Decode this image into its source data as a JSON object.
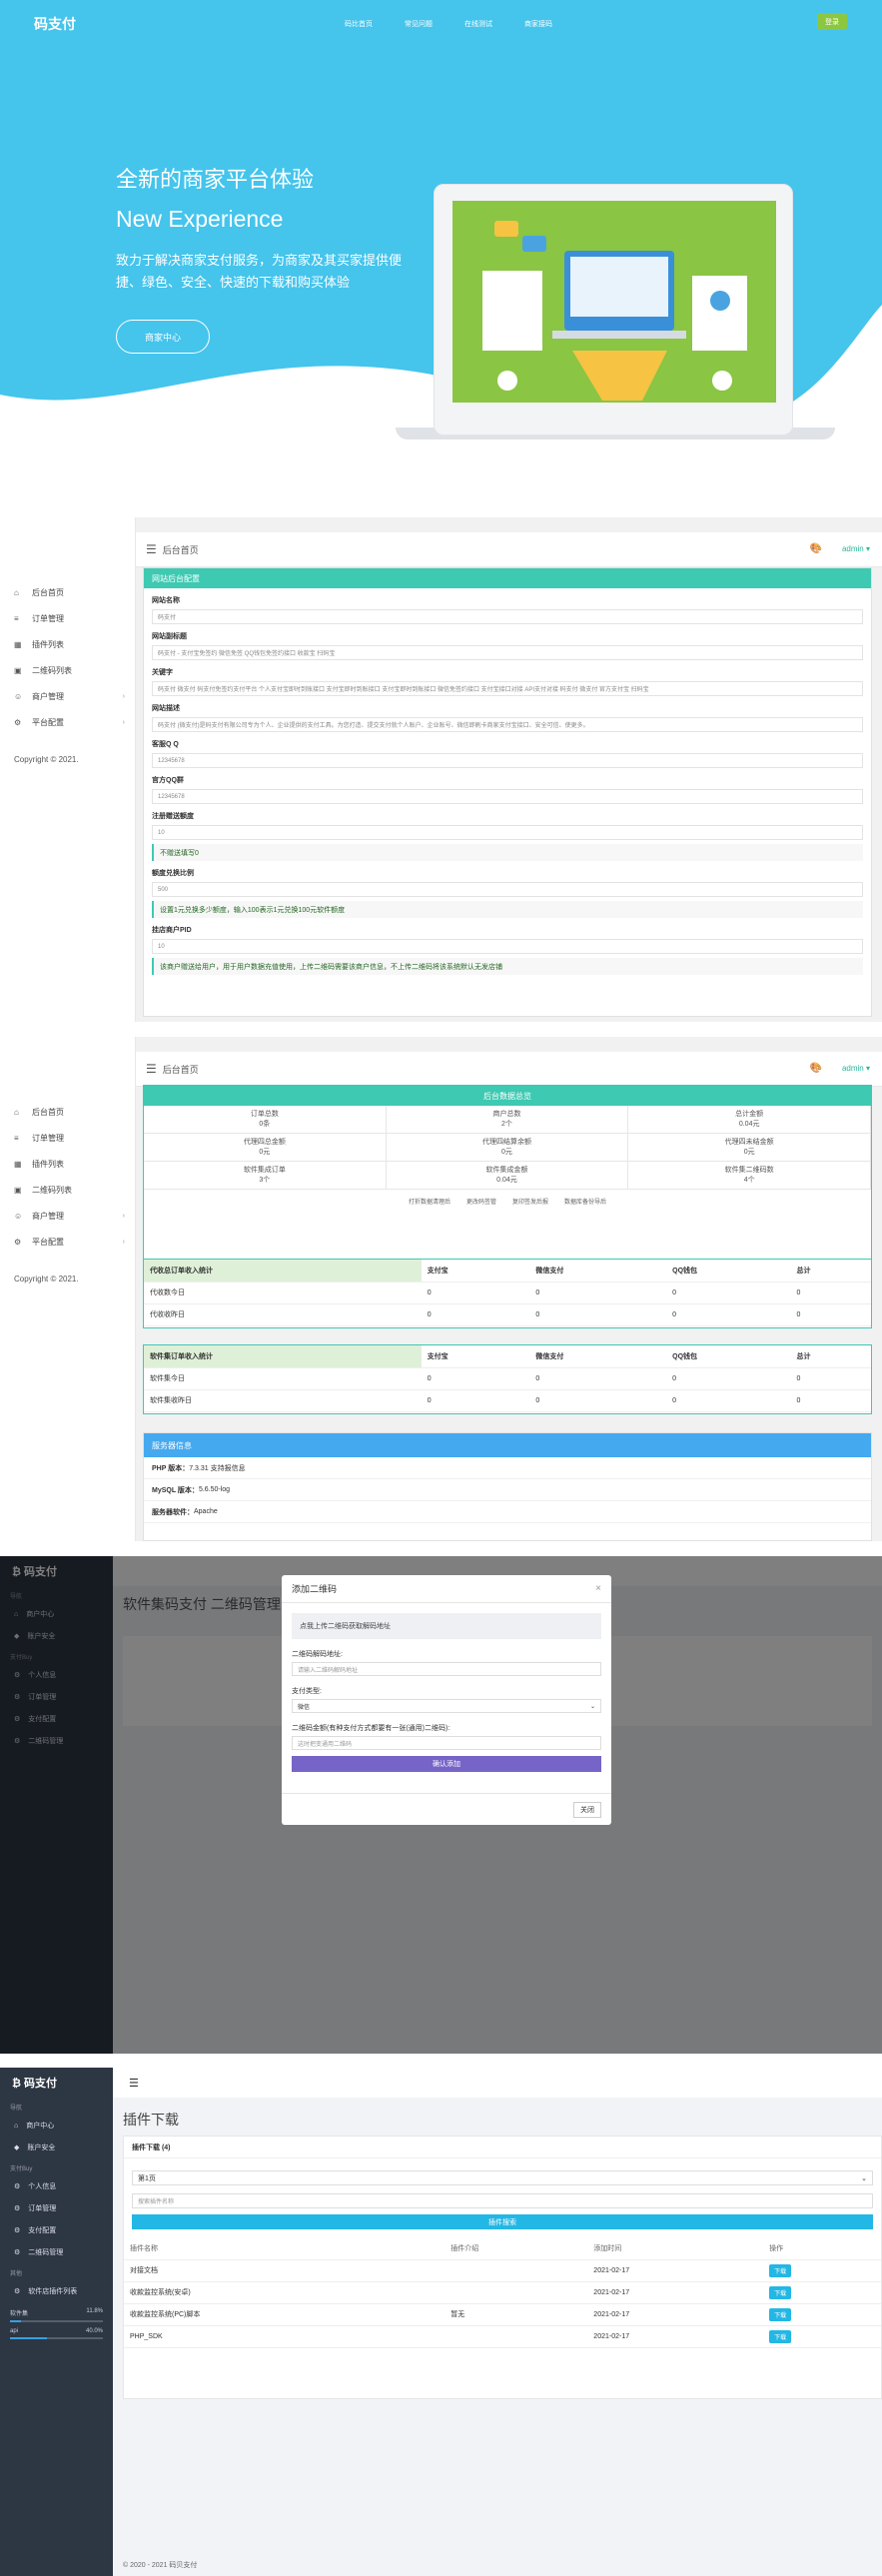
{
  "hero": {
    "logo": "码支付",
    "nav": [
      "码比首页",
      "常见问题",
      "在线测试",
      "商家接码"
    ],
    "login": "登录",
    "title1": "全新的商家平台体验",
    "title2": "New Experience",
    "desc": "致力于解决商家支付服务，为商家及其买家提供便捷、绿色、安全、快速的下载和购买体验",
    "cta": "商家中心"
  },
  "admin": {
    "topbar_title": "后台首页",
    "user": "admin ▾",
    "sidebar": [
      "后台首页",
      "订单管理",
      "插件列表",
      "二维码列表",
      "商户管理",
      "平台配置"
    ],
    "copyright": "Copyright © 2021.",
    "config": {
      "header": "网站后台配置",
      "fields": [
        {
          "label": "网站名称",
          "value": "码支付"
        },
        {
          "label": "网站副标题",
          "value": "码支付 - 支付宝免签约 微信免签 QQ钱包免签约接口 收款宝 扫码宝"
        },
        {
          "label": "关键字",
          "value": "码支付 微支付 码支付免签约支付平台 个人支付宝即时到账接口 支付宝即时到账接口 支付宝即时到账接口 微信免签约接口 支付宝接口对接 API支付对接 码支付 微支付 官方支付宝 扫码宝"
        },
        {
          "label": "网站描述",
          "value": "码支付 (微支付)是码支付有限公司专为个人、企业提供的支付工具。为您打造、提交支付就个人账户、企业账号、微信即刷卡商家支付宝接口、安全可信、使更多。"
        },
        {
          "label": "客服Q Q",
          "value": "12345678"
        },
        {
          "label": "官方QQ群",
          "value": "12345678"
        },
        {
          "label": "注册赠送额度",
          "value": "10",
          "hint": "不赠送填写0"
        },
        {
          "label": "额度兑换比例",
          "value": "500",
          "hint": "设置1元兑换多少额度，输入100表示1元兑换100元软件额度"
        },
        {
          "label": "挂店商户PID",
          "value": "10",
          "hint": "该商户赠送给用户，用于用户数据充值使用，上传二维码需要该商户信息，不上传二维码将该系统默认无发店铺"
        }
      ]
    },
    "stats": {
      "header": "后台数据总览",
      "cells": [
        [
          "订单总数",
          "0条"
        ],
        [
          "商户总数",
          "2个"
        ],
        [
          "总计金额",
          "0.04元"
        ],
        [
          "代理四总金额",
          "0元"
        ],
        [
          "代理四结算余额",
          "0元"
        ],
        [
          "代理四未结金额",
          "0元"
        ],
        [
          "软件集成订单",
          "3个"
        ],
        [
          "软件集成金额",
          "0.04元"
        ],
        [
          "软件集二维码数",
          "4个"
        ]
      ],
      "links": [
        "打折数据清理后",
        "更改码签管",
        "复印签发后报",
        "数据库备份导后"
      ],
      "t1": {
        "head": [
          "代收总订单收入统计",
          "支付宝",
          "微信支付",
          "QQ钱包",
          "总计"
        ],
        "rows": [
          [
            "代收数今日",
            "0",
            "0",
            "0",
            "0"
          ],
          [
            "代收收昨日",
            "0",
            "0",
            "0",
            "0"
          ]
        ]
      },
      "t2": {
        "head": [
          "软件集订单收入统计",
          "支付宝",
          "微信支付",
          "QQ钱包",
          "总计"
        ],
        "rows": [
          [
            "软件集今日",
            "0",
            "0",
            "0",
            "0"
          ],
          [
            "软件集收昨日",
            "0",
            "0",
            "0",
            "0"
          ]
        ]
      },
      "server": {
        "header": "服务器信息",
        "rows": [
          [
            "PHP 版本：",
            "7.3.31 支持报信息"
          ],
          [
            "MySQL 版本：",
            "5.6.50-log"
          ],
          [
            "服务器软件：",
            "Apache"
          ]
        ]
      }
    }
  },
  "modal": {
    "bg_title": "软件集码支付 二维码管理",
    "title": "添加二维码",
    "note": "点我上传二维码获取解码地址",
    "l1": "二维码解码地址:",
    "p1": "请输入二维码解码地址",
    "l2": "支付类型:",
    "v2": "微信",
    "l3": "二维码金额(有种支付方式都要有一张(通用)二维码):",
    "p3": "这时把变通用二维码",
    "submit": "确认添加",
    "close": "关闭"
  },
  "plugin": {
    "logo": "₿ 码支付",
    "sec1": "导航",
    "items1": [
      "商户中心",
      "账户安全"
    ],
    "sec2": "支付Buy",
    "items2": [
      "个人信息",
      "订单管理",
      "支付配置",
      "二维码管理"
    ],
    "sec3": "其他",
    "items3": [
      "软件店插件列表"
    ],
    "bars": [
      [
        "软件集",
        "11.8%",
        "11.8"
      ],
      [
        "api",
        "40.0%",
        "40"
      ]
    ],
    "title": "插件下载",
    "card_h": "插件下载 (4)",
    "select": "第1页",
    "search_ph": "搜索插件名称",
    "search_btn": "插件搜索",
    "thead": [
      "插件名称",
      "插件介绍",
      "添加时间",
      "操作"
    ],
    "rows": [
      [
        "对接文档",
        "",
        "2021-02-17",
        "下载"
      ],
      [
        "收款监控系统(安卓)",
        "",
        "2021-02-17",
        "下载"
      ],
      [
        "收款监控系统(PC)脚本",
        "暂无",
        "2021-02-17",
        "下载"
      ],
      [
        "PHP_SDK",
        "",
        "2021-02-17",
        "下载"
      ]
    ],
    "footer": "© 2020 - 2021 码贝支付"
  }
}
